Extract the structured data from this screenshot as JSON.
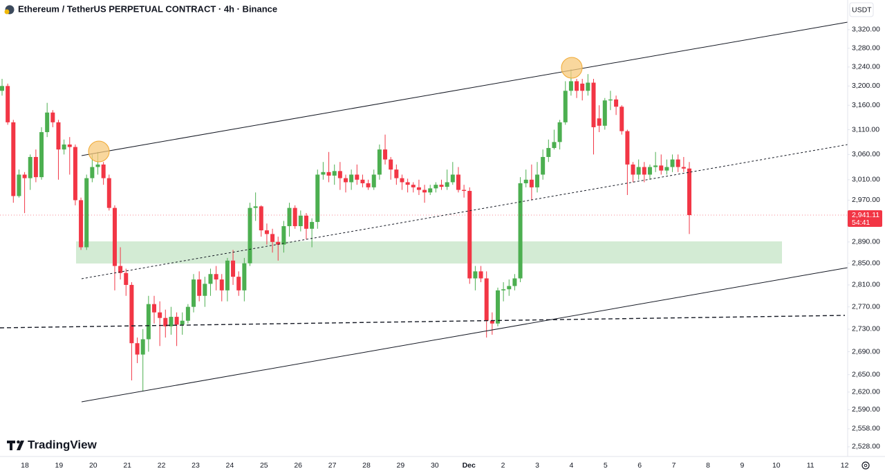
{
  "chart_data": {
    "type": "candlestick",
    "title": "Ethereum / TetherUS PERPETUAL CONTRACT · 4h · Binance",
    "currency": "USDT",
    "brand": "TradingView",
    "log_scale": true,
    "grid": false,
    "up_color": "#4caf50",
    "down_color": "#f23645",
    "ylim": [
      2512,
      3385
    ],
    "yticks": [
      {
        "value": 3320,
        "label": "3,320.00"
      },
      {
        "value": 3280,
        "label": "3,280.00"
      },
      {
        "value": 3240,
        "label": "3,240.00"
      },
      {
        "value": 3200,
        "label": "3,200.00"
      },
      {
        "value": 3160,
        "label": "3,160.00"
      },
      {
        "value": 3110,
        "label": "3,110.00"
      },
      {
        "value": 3060,
        "label": "3,060.00"
      },
      {
        "value": 3010,
        "label": "3,010.00"
      },
      {
        "value": 2970,
        "label": "2,970.00"
      },
      {
        "value": 2890,
        "label": "2,890.00"
      },
      {
        "value": 2850,
        "label": "2,850.00"
      },
      {
        "value": 2810,
        "label": "2,810.00"
      },
      {
        "value": 2770,
        "label": "2,770.00"
      },
      {
        "value": 2730,
        "label": "2,730.00"
      },
      {
        "value": 2690,
        "label": "2,690.00"
      },
      {
        "value": 2650,
        "label": "2,650.00"
      },
      {
        "value": 2620,
        "label": "2,620.00"
      },
      {
        "value": 2590,
        "label": "2,590.00"
      },
      {
        "value": 2558,
        "label": "2,558.00"
      },
      {
        "value": 2528,
        "label": "2,528.00"
      }
    ],
    "x_labels": [
      "18",
      "19",
      "20",
      "21",
      "22",
      "23",
      "24",
      "25",
      "26",
      "27",
      "28",
      "29",
      "30",
      "Dec",
      "2",
      "3",
      "4",
      "5",
      "6",
      "7",
      "8",
      "9",
      "10",
      "11",
      "12"
    ],
    "last_price_label": "2,941.11",
    "countdown": "54:41",
    "open": [
      3190,
      3200,
      3125,
      2978,
      3020,
      3013,
      3055,
      3015,
      3105,
      3145,
      3125,
      3070,
      3080,
      3075,
      2970,
      2880,
      3013,
      3035,
      3040,
      3013,
      2955,
      2845,
      2832,
      2810,
      2705,
      2685,
      2712,
      2775,
      2760,
      2750,
      2735,
      2752,
      2738,
      2745,
      2770,
      2820,
      2790,
      2812,
      2830,
      2820,
      2800,
      2855,
      2825,
      2800,
      2850,
      2955,
      2958,
      2912,
      2905,
      2890,
      2885,
      2920,
      2955,
      2920,
      2940,
      2915,
      2928,
      3020,
      3025,
      3018,
      3027,
      3013,
      3005,
      3020,
      3010,
      3003,
      2995,
      3020,
      3070,
      3050,
      3030,
      3013,
      3005,
      3000,
      2995,
      2990,
      2985,
      2993,
      3000,
      2996,
      3005,
      3020,
      2990,
      2988,
      2822,
      2835,
      2822,
      2745,
      2740,
      2800,
      2802,
      2808,
      2822,
      3003,
      3010,
      2995,
      3020,
      3055,
      3073,
      3085,
      3125,
      3190,
      3210,
      3205,
      3190,
      3207,
      3133,
      3118,
      3170,
      3172,
      3157,
      3107,
      3040,
      3020,
      3035,
      3020,
      3035,
      3038,
      3028,
      3035,
      3050,
      3035,
      3032
    ],
    "high": [
      3215,
      3205,
      3130,
      3030,
      3025,
      3060,
      3070,
      3115,
      3165,
      3150,
      3130,
      3090,
      3095,
      3080,
      2975,
      3020,
      3060,
      3065,
      3045,
      3020,
      2960,
      2880,
      2840,
      2815,
      2715,
      2730,
      2790,
      2790,
      2780,
      2765,
      2770,
      2760,
      2760,
      2775,
      2830,
      2835,
      2825,
      2840,
      2845,
      2830,
      2860,
      2875,
      2835,
      2860,
      2965,
      2985,
      2960,
      2925,
      2915,
      2900,
      2930,
      2965,
      2960,
      2950,
      2945,
      2935,
      3030,
      3045,
      3065,
      3040,
      3045,
      3020,
      3030,
      3040,
      3020,
      3010,
      3030,
      3080,
      3100,
      3055,
      3040,
      3020,
      3012,
      3005,
      3010,
      3000,
      3000,
      3005,
      3010,
      3030,
      3045,
      3035,
      3000,
      2995,
      2845,
      2845,
      2835,
      2760,
      2805,
      2815,
      2820,
      2830,
      3015,
      3030,
      3040,
      3045,
      3070,
      3090,
      3110,
      3130,
      3210,
      3235,
      3215,
      3215,
      3225,
      3215,
      3160,
      3175,
      3190,
      3180,
      3160,
      3110,
      3045,
      3050,
      3045,
      3040,
      3065,
      3060,
      3050,
      3060,
      3060,
      3055,
      3045
    ],
    "low": [
      3180,
      3120,
      2965,
      2975,
      2945,
      2990,
      3005,
      3010,
      3095,
      3115,
      3010,
      3060,
      3020,
      2960,
      2875,
      2875,
      3005,
      3020,
      3000,
      2950,
      2800,
      2820,
      2790,
      2640,
      2670,
      2622,
      2690,
      2740,
      2700,
      2715,
      2720,
      2700,
      2720,
      2740,
      2760,
      2780,
      2770,
      2790,
      2800,
      2780,
      2780,
      2810,
      2790,
      2780,
      2845,
      2930,
      2900,
      2885,
      2870,
      2855,
      2870,
      2900,
      2915,
      2910,
      2895,
      2880,
      2915,
      3010,
      3005,
      3000,
      2990,
      2985,
      2990,
      3000,
      2995,
      2990,
      2990,
      3010,
      3040,
      3010,
      3000,
      2990,
      2985,
      2985,
      2980,
      2965,
      2980,
      2985,
      2990,
      2990,
      3000,
      2985,
      2975,
      2812,
      2800,
      2815,
      2715,
      2720,
      2735,
      2780,
      2790,
      2800,
      2815,
      2995,
      2970,
      2985,
      3010,
      3045,
      3070,
      3070,
      3120,
      3180,
      3175,
      3170,
      3180,
      3060,
      3105,
      3110,
      3150,
      3140,
      3100,
      2980,
      3005,
      3010,
      3005,
      3010,
      3025,
      3020,
      3020,
      3025,
      3025,
      3025,
      2905
    ],
    "close": [
      3200,
      3125,
      2978,
      3020,
      3013,
      3055,
      3015,
      3105,
      3145,
      3125,
      3070,
      3080,
      3075,
      2970,
      2880,
      3013,
      3035,
      3040,
      3013,
      2955,
      2845,
      2832,
      2810,
      2705,
      2685,
      2712,
      2775,
      2760,
      2750,
      2735,
      2752,
      2738,
      2745,
      2770,
      2820,
      2790,
      2812,
      2830,
      2820,
      2800,
      2855,
      2825,
      2800,
      2850,
      2955,
      2958,
      2912,
      2905,
      2890,
      2885,
      2920,
      2955,
      2920,
      2940,
      2915,
      2928,
      3020,
      3025,
      3018,
      3027,
      3013,
      3005,
      3020,
      3010,
      3003,
      2995,
      3020,
      3070,
      3050,
      3030,
      3013,
      3005,
      3000,
      2995,
      2990,
      2985,
      2993,
      3000,
      2996,
      3005,
      3020,
      2990,
      2988,
      2822,
      2835,
      2822,
      2745,
      2740,
      2800,
      2802,
      2808,
      2822,
      3003,
      3010,
      2995,
      3020,
      3055,
      3073,
      3085,
      3125,
      3190,
      3210,
      3190,
      3190,
      3207,
      3115,
      3118,
      3170,
      3172,
      3157,
      3107,
      3040,
      3020,
      3035,
      3020,
      3035,
      3038,
      3028,
      3035,
      3050,
      3035,
      3032,
      2941.11
    ]
  }
}
